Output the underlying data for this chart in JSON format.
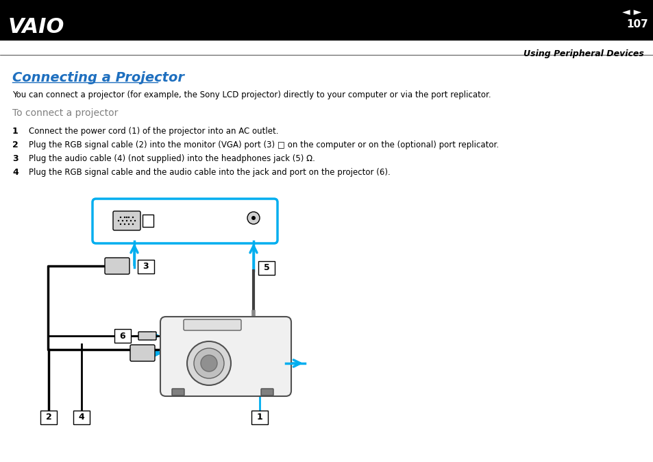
{
  "title": "Connecting a Projector",
  "title_color": "#1E6FBF",
  "subtitle": "To connect a projector",
  "subtitle_color": "#808080",
  "body_text": "You can connect a projector (for example, the Sony LCD projector) directly to your computer or via the port replicator.",
  "steps": [
    {
      "num": "1",
      "text": "Connect the power cord (1) of the projector into an AC outlet."
    },
    {
      "num": "2",
      "text": "Plug the RGB signal cable (2) into the monitor (VGA) port (3) □ on the computer or on the (optional) port replicator."
    },
    {
      "num": "3",
      "text": "Plug the audio cable (4) (not supplied) into the headphones jack (5) Ω."
    },
    {
      "num": "4",
      "text": "Plug the RGB signal cable and the audio cable into the jack and port on the projector (6)."
    }
  ],
  "header_bg": "#000000",
  "page_number": "107",
  "page_label": "Using Peripheral Devices",
  "nav_arrows_color": "#cccccc",
  "cyan_color": "#00AEEF",
  "background": "#FFFFFF"
}
